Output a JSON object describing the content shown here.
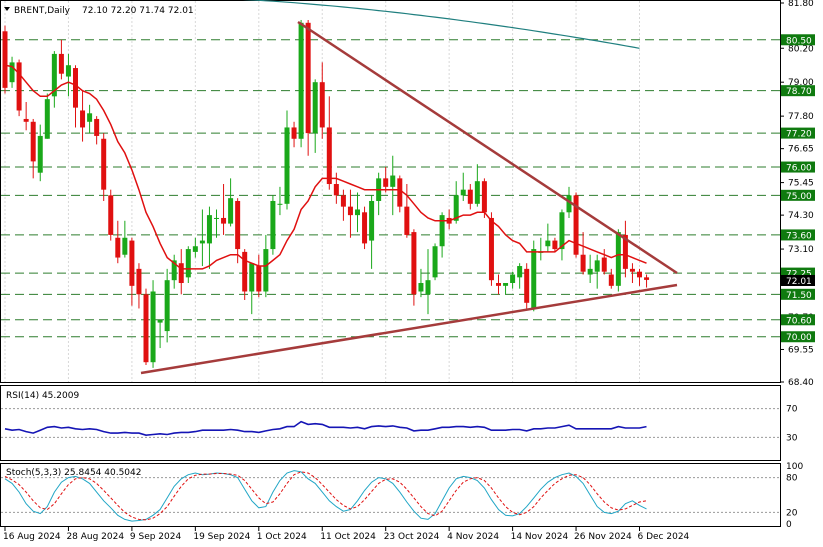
{
  "header": {
    "symbol": "BRENT,Daily",
    "ohlc": "72.10 72.20 71.74 72.01"
  },
  "current_price_label": "72.01",
  "colors": {
    "bull": "#1aa81a",
    "bear": "#e01010",
    "ema_fast": "#e01010",
    "ema_slow": "#1f7f7f",
    "trendline": "#a53b3b",
    "level_tag": "#0f7a0f",
    "rsi": "#1515b5",
    "stoch_k": "#21a6c6",
    "stoch_d": "#e01010",
    "grid": "#d8d8d8",
    "dashed": "#2e7d2e"
  },
  "chart_data": [
    {
      "type": "candlestick",
      "title": "BRENT,Daily",
      "ylim": [
        68.4,
        81.8
      ],
      "y_ticks": [
        "81.80",
        "80.20",
        "79.00",
        "77.80",
        "76.65",
        "75.45",
        "74.30",
        "73.10",
        "71.90",
        "70.70",
        "69.55",
        "68.40"
      ],
      "levels": [
        "80.50",
        "78.70",
        "77.20",
        "76.00",
        "75.00",
        "73.60",
        "72.25",
        "71.50",
        "70.60",
        "70.00"
      ],
      "x_ticks": [
        "16 Aug 2024",
        "28 Aug 2024",
        "9 Sep 2024",
        "19 Sep 2024",
        "1 Oct 2024",
        "11 Oct 2024",
        "23 Oct 2024",
        "4 Nov 2024",
        "14 Nov 2024",
        "26 Nov 2024",
        "6 Dec 2024"
      ],
      "candles": [
        [
          80.8,
          81.0,
          78.6,
          78.8
        ],
        [
          79.0,
          79.9,
          78.8,
          79.7
        ],
        [
          79.7,
          79.8,
          77.8,
          78.0
        ],
        [
          77.7,
          78.3,
          77.3,
          77.6
        ],
        [
          77.6,
          77.7,
          75.6,
          76.2
        ],
        [
          75.8,
          77.5,
          75.5,
          77.1
        ],
        [
          77.0,
          78.6,
          77.0,
          78.4
        ],
        [
          78.5,
          80.1,
          78.1,
          80.0
        ],
        [
          80.0,
          80.5,
          79.1,
          79.3
        ],
        [
          79.2,
          80.0,
          78.5,
          79.6
        ],
        [
          79.5,
          79.6,
          77.4,
          78.1
        ],
        [
          78.0,
          78.7,
          76.9,
          77.4
        ],
        [
          77.6,
          78.2,
          77.2,
          77.9
        ],
        [
          77.7,
          77.8,
          76.8,
          77.1
        ],
        [
          77.0,
          77.2,
          74.8,
          75.2
        ],
        [
          75.0,
          75.2,
          73.4,
          73.6
        ],
        [
          73.5,
          74.1,
          72.6,
          72.8
        ],
        [
          72.9,
          74.1,
          72.8,
          73.5
        ],
        [
          73.4,
          73.5,
          71.1,
          71.8
        ],
        [
          72.4,
          72.6,
          71.0,
          71.5
        ],
        [
          71.5,
          71.7,
          69.0,
          69.1
        ],
        [
          69.1,
          72.0,
          68.9,
          71.6
        ],
        [
          70.5,
          70.6,
          69.6,
          70.6
        ],
        [
          70.2,
          72.4,
          69.8,
          72.0
        ],
        [
          72.0,
          72.9,
          71.7,
          72.7
        ],
        [
          72.6,
          73.1,
          71.5,
          71.9
        ],
        [
          72.1,
          73.2,
          71.9,
          73.1
        ],
        [
          73.0,
          73.5,
          72.8,
          73.2
        ],
        [
          73.3,
          74.5,
          72.5,
          73.4
        ],
        [
          73.3,
          74.6,
          72.4,
          74.3
        ],
        [
          74.2,
          74.5,
          73.5,
          74.2
        ],
        [
          74.2,
          75.4,
          73.6,
          74.0
        ],
        [
          74.0,
          75.6,
          73.9,
          74.9
        ],
        [
          74.8,
          74.9,
          72.6,
          73.1
        ],
        [
          73.0,
          73.1,
          71.3,
          71.6
        ],
        [
          71.6,
          72.6,
          70.8,
          72.6
        ],
        [
          72.5,
          72.9,
          71.4,
          71.6
        ],
        [
          71.6,
          73.6,
          71.4,
          73.1
        ],
        [
          73.1,
          75.0,
          72.9,
          74.8
        ],
        [
          74.7,
          75.3,
          74.3,
          74.7
        ],
        [
          74.7,
          78.0,
          74.5,
          77.4
        ],
        [
          77.4,
          77.6,
          76.7,
          77.0
        ],
        [
          77.0,
          81.2,
          76.7,
          81.1
        ],
        [
          81.1,
          81.2,
          76.4,
          77.2
        ],
        [
          77.2,
          79.1,
          76.5,
          79.0
        ],
        [
          79.0,
          79.7,
          77.0,
          77.4
        ],
        [
          77.4,
          78.5,
          75.2,
          75.4
        ],
        [
          75.4,
          75.8,
          74.7,
          75.0
        ],
        [
          75.0,
          75.2,
          74.1,
          74.6
        ],
        [
          74.6,
          75.2,
          73.5,
          74.3
        ],
        [
          74.3,
          75.1,
          73.7,
          74.5
        ],
        [
          74.4,
          74.6,
          73.1,
          73.3
        ],
        [
          73.4,
          75.0,
          72.4,
          74.8
        ],
        [
          74.8,
          75.8,
          74.3,
          75.6
        ],
        [
          75.6,
          76.0,
          75.1,
          75.3
        ],
        [
          75.3,
          76.4,
          74.3,
          75.7
        ],
        [
          75.6,
          75.7,
          74.4,
          74.6
        ],
        [
          74.6,
          75.4,
          73.5,
          73.6
        ],
        [
          73.7,
          73.8,
          71.1,
          71.5
        ],
        [
          71.6,
          72.4,
          71.4,
          71.9
        ],
        [
          71.5,
          73.1,
          70.8,
          72.0
        ],
        [
          72.1,
          73.3,
          72.0,
          73.2
        ],
        [
          73.2,
          74.4,
          72.8,
          74.3
        ],
        [
          74.2,
          74.5,
          73.8,
          74.0
        ],
        [
          74.1,
          75.5,
          74.0,
          75.0
        ],
        [
          75.0,
          75.8,
          74.8,
          75.2
        ],
        [
          75.2,
          75.4,
          74.5,
          74.7
        ],
        [
          74.7,
          76.1,
          74.6,
          75.5
        ],
        [
          75.5,
          75.6,
          74.2,
          74.4
        ],
        [
          74.2,
          74.4,
          71.8,
          72.0
        ],
        [
          71.9,
          72.2,
          71.5,
          71.8
        ],
        [
          71.8,
          71.9,
          71.5,
          71.9
        ],
        [
          71.9,
          72.3,
          71.7,
          72.2
        ],
        [
          72.1,
          72.6,
          71.7,
          72.5
        ],
        [
          72.4,
          72.6,
          71.0,
          71.2
        ],
        [
          71.0,
          73.4,
          70.9,
          73.1
        ],
        [
          73.0,
          73.5,
          72.7,
          73.0
        ],
        [
          73.2,
          74.0,
          73.0,
          73.4
        ],
        [
          73.4,
          73.5,
          73.0,
          73.1
        ],
        [
          73.1,
          74.5,
          72.7,
          74.4
        ],
        [
          74.4,
          75.3,
          74.2,
          75.0
        ],
        [
          75.0,
          75.1,
          72.8,
          72.9
        ],
        [
          72.9,
          73.7,
          72.2,
          72.3
        ],
        [
          72.2,
          72.9,
          71.9,
          72.4
        ],
        [
          72.3,
          72.9,
          71.7,
          72.7
        ],
        [
          72.8,
          73.1,
          72.2,
          72.3
        ],
        [
          72.2,
          72.4,
          71.7,
          71.8
        ],
        [
          71.8,
          73.8,
          71.6,
          73.7
        ],
        [
          73.6,
          74.1,
          72.1,
          72.4
        ],
        [
          72.4,
          72.6,
          71.9,
          72.3
        ],
        [
          72.3,
          72.4,
          71.8,
          72.1
        ],
        [
          72.1,
          72.2,
          71.74,
          72.01
        ]
      ],
      "ema_fast": [
        79.6,
        79.55,
        79.3,
        79.0,
        78.7,
        78.5,
        78.5,
        78.7,
        78.9,
        79.0,
        78.9,
        78.7,
        78.6,
        78.4,
        78.0,
        77.5,
        76.9,
        76.5,
        75.9,
        75.2,
        74.4,
        73.9,
        73.3,
        72.8,
        72.6,
        72.4,
        72.4,
        72.4,
        72.4,
        72.5,
        72.7,
        72.8,
        72.9,
        72.9,
        72.7,
        72.6,
        72.5,
        72.5,
        72.7,
        72.9,
        73.4,
        73.8,
        74.5,
        74.8,
        75.3,
        75.6,
        75.6,
        75.6,
        75.5,
        75.4,
        75.3,
        75.2,
        75.2,
        75.2,
        75.2,
        75.2,
        75.2,
        75.0,
        74.7,
        74.4,
        74.2,
        74.1,
        74.1,
        74.1,
        74.2,
        74.3,
        74.3,
        74.4,
        74.4,
        74.1,
        73.9,
        73.6,
        73.4,
        73.3,
        73.0,
        73.0,
        73.0,
        73.0,
        73.0,
        73.2,
        73.4,
        73.3,
        73.2,
        73.1,
        73.0,
        72.9,
        72.8,
        72.9,
        72.9,
        72.8,
        72.7,
        72.6
      ],
      "ema_slow_start": [
        82.0,
        80.2
      ]
    },
    {
      "type": "line",
      "title": "RSI(14) 45.2009",
      "ylim": [
        0,
        100
      ],
      "y_ticks": [
        "70",
        "30"
      ],
      "values": [
        42,
        40,
        41,
        38,
        36,
        40,
        44,
        45,
        43,
        44,
        42,
        41,
        42,
        41,
        38,
        36,
        36,
        37,
        36,
        36,
        33,
        34,
        35,
        34,
        36,
        37,
        37,
        38,
        40,
        40,
        40,
        40,
        41,
        40,
        38,
        38,
        37,
        39,
        41,
        42,
        45,
        45,
        52,
        48,
        49,
        48,
        44,
        44,
        44,
        43,
        44,
        42,
        45,
        46,
        45,
        46,
        44,
        43,
        39,
        40,
        40,
        42,
        44,
        44,
        45,
        45,
        44,
        45,
        44,
        40,
        40,
        40,
        41,
        41,
        39,
        42,
        42,
        43,
        43,
        45,
        47,
        42,
        42,
        42,
        42,
        42,
        42,
        45,
        43,
        43,
        43,
        45
      ]
    },
    {
      "type": "line",
      "title": "Stoch(5,3,3) 25.8454 40.5042",
      "ylim": [
        0,
        100
      ],
      "y_ticks": [
        "100",
        "80",
        "20",
        "0"
      ],
      "k": [
        78,
        70,
        55,
        35,
        22,
        18,
        30,
        55,
        72,
        80,
        82,
        78,
        70,
        55,
        40,
        28,
        15,
        8,
        5,
        6,
        8,
        15,
        25,
        45,
        65,
        78,
        85,
        88,
        85,
        86,
        88,
        87,
        85,
        80,
        60,
        40,
        28,
        30,
        55,
        75,
        88,
        92,
        90,
        78,
        70,
        55,
        40,
        30,
        22,
        25,
        40,
        58,
        72,
        80,
        78,
        70,
        55,
        38,
        22,
        10,
        8,
        18,
        40,
        62,
        78,
        82,
        80,
        75,
        62,
        42,
        25,
        15,
        14,
        18,
        30,
        45,
        60,
        72,
        80,
        85,
        88,
        82,
        70,
        50,
        30,
        20,
        18,
        22,
        35,
        40,
        32,
        26
      ],
      "d": [
        82,
        76,
        68,
        55,
        40,
        28,
        25,
        35,
        52,
        68,
        78,
        80,
        78,
        70,
        58,
        45,
        32,
        20,
        12,
        8,
        7,
        10,
        18,
        30,
        48,
        65,
        78,
        84,
        86,
        86,
        87,
        87,
        86,
        84,
        75,
        60,
        45,
        35,
        38,
        52,
        70,
        85,
        90,
        88,
        80,
        68,
        55,
        42,
        32,
        26,
        30,
        42,
        56,
        70,
        77,
        78,
        72,
        60,
        45,
        30,
        18,
        14,
        22,
        40,
        58,
        72,
        78,
        80,
        75,
        62,
        45,
        30,
        20,
        16,
        20,
        30,
        45,
        58,
        70,
        78,
        84,
        85,
        80,
        68,
        52,
        38,
        28,
        24,
        26,
        32,
        38,
        40
      ]
    }
  ]
}
